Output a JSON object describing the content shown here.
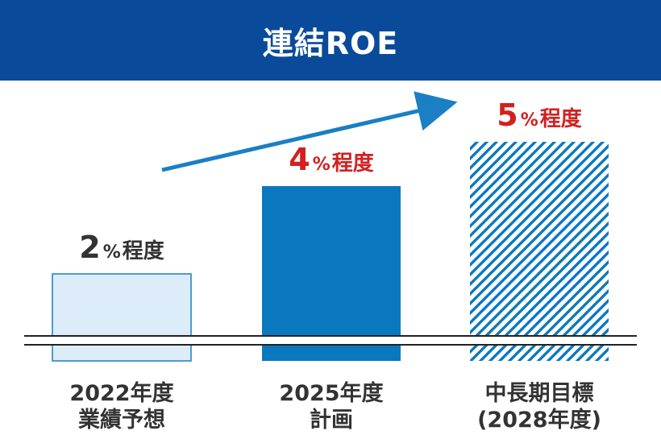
{
  "header": {
    "title": "連結ROE"
  },
  "colors": {
    "header_bg": "#0a4a9a",
    "arrow": "#1a7fc4",
    "red": "#d42020",
    "dark": "#333333"
  },
  "chart_data": {
    "type": "bar",
    "title": "連結ROE",
    "unit": "%",
    "ylim": [
      0,
      5.5
    ],
    "categories": [
      {
        "line1": "2022年度",
        "line2": "業績予想"
      },
      {
        "line1": "2025年度",
        "line2": "計画"
      },
      {
        "line1": "中長期目標",
        "line2": "(2028年度)"
      }
    ],
    "values": [
      2,
      4,
      5
    ],
    "value_labels": [
      {
        "number": "2",
        "unit": "%",
        "suffix": "程度",
        "color": "#333333"
      },
      {
        "number": "4",
        "unit": "%",
        "suffix": "程度",
        "color": "#d42020"
      },
      {
        "number": "5",
        "unit": "%",
        "suffix": "程度",
        "color": "#d42020"
      }
    ],
    "bar_styles": [
      {
        "fill": "#dcedf9",
        "stroke": "#1a7fc4",
        "pattern": "none"
      },
      {
        "fill": "#0a78bf",
        "stroke": "none",
        "pattern": "none"
      },
      {
        "fill": "#0a78bf",
        "stroke": "none",
        "pattern": "diagonal-stripes"
      }
    ],
    "axis_break": true,
    "trend_arrow": true
  }
}
